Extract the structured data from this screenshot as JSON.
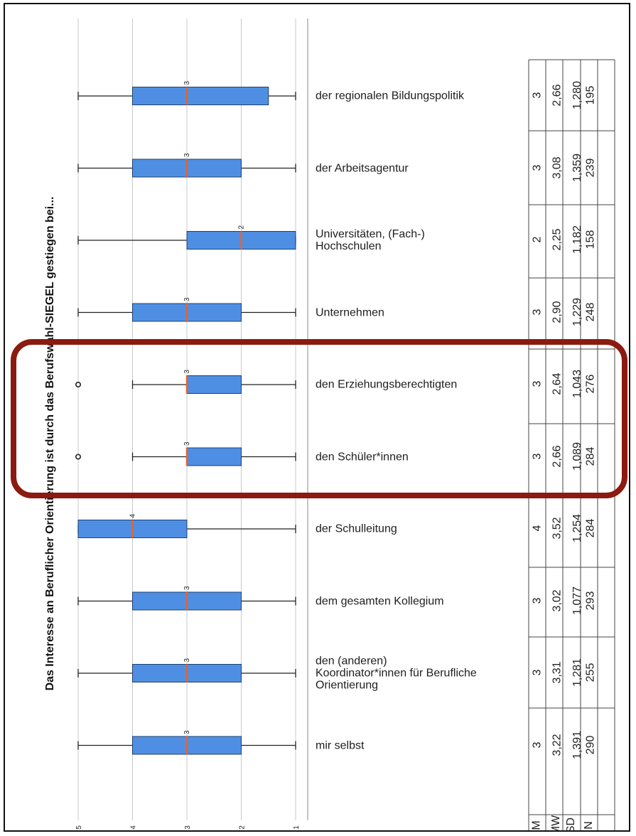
{
  "chart_data": {
    "type": "boxplot",
    "title": "Das Interesse an Beruflicher Orientierung ist durch das Berufswahl-SIEGEL gestiegen bei...",
    "axis_ticks": [
      "5",
      "4",
      "3",
      "2",
      "1"
    ],
    "axis_range": [
      1,
      5
    ],
    "grid": true,
    "categories": [
      {
        "label": "der regionalen Bildungspolitik",
        "min": 1,
        "q1": 1.5,
        "median": 3,
        "q3": 4,
        "max": 5,
        "outliers": [],
        "M": "3",
        "MW": "2,66",
        "SD": "1,280",
        "N": "195"
      },
      {
        "label": "der Arbeitsagentur",
        "min": 1,
        "q1": 2,
        "median": 3,
        "q3": 4,
        "max": 5,
        "outliers": [],
        "M": "3",
        "MW": "3,08",
        "SD": "1,359",
        "N": "239"
      },
      {
        "label": "Universitäten, (Fach-)\nHochschulen",
        "min": 1,
        "q1": 1,
        "median": 2,
        "q3": 3,
        "max": 5,
        "outliers": [],
        "M": "2",
        "MW": "2,25",
        "SD": "1,182",
        "N": "158"
      },
      {
        "label": "Unternehmen",
        "min": 1,
        "q1": 2,
        "median": 3,
        "q3": 4,
        "max": 5,
        "outliers": [],
        "M": "3",
        "MW": "2,90",
        "SD": "1,229",
        "N": "248"
      },
      {
        "label": "den Erziehungsberechtigten",
        "min": 1,
        "q1": 2,
        "median": 3,
        "q3": 3,
        "max": 4,
        "outliers": [
          5
        ],
        "M": "3",
        "MW": "2,64",
        "SD": "1,043",
        "N": "276"
      },
      {
        "label": "den Schüler*innen",
        "min": 1,
        "q1": 2,
        "median": 3,
        "q3": 3,
        "max": 4,
        "outliers": [
          5
        ],
        "M": "3",
        "MW": "2,66",
        "SD": "1,089",
        "N": "284"
      },
      {
        "label": "der Schulleitung",
        "min": 1,
        "q1": 3,
        "median": 4,
        "q3": 5,
        "max": 5,
        "outliers": [],
        "M": "4",
        "MW": "3,52",
        "SD": "1,254",
        "N": "284"
      },
      {
        "label": "dem gesamten Kollegium",
        "min": 1,
        "q1": 2,
        "median": 3,
        "q3": 4,
        "max": 5,
        "outliers": [],
        "M": "3",
        "MW": "3,02",
        "SD": "1,077",
        "N": "293"
      },
      {
        "label": "den (anderen)\nKoordinator*innen für Berufliche\nOrientierung",
        "min": 1,
        "q1": 2,
        "median": 3,
        "q3": 4,
        "max": 5,
        "outliers": [],
        "M": "3",
        "MW": "3,31",
        "SD": "1,281",
        "N": "255"
      },
      {
        "label": "mir selbst",
        "min": 1,
        "q1": 2,
        "median": 3,
        "q3": 4,
        "max": 5,
        "outliers": [],
        "M": "3",
        "MW": "3,22",
        "SD": "1,391",
        "N": "290"
      }
    ],
    "stat_headers": [
      "M",
      "MW",
      "SD",
      "N"
    ],
    "colors": {
      "box_fill": "#4f8fe3",
      "box_stroke": "#1f3f6f",
      "median": "#e8622c",
      "grid": "#c8c8c8",
      "highlight": "#8b1a10"
    }
  }
}
